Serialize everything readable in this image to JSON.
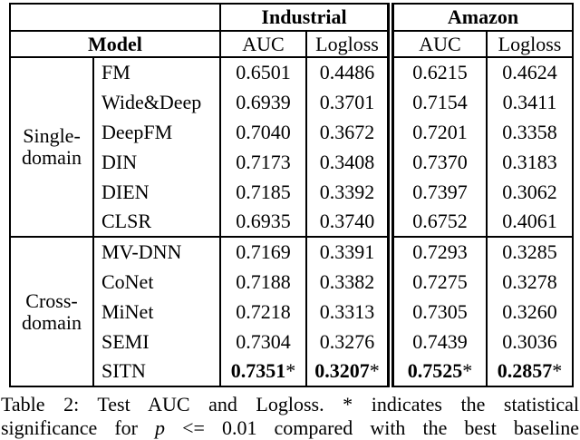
{
  "page": {
    "background": "#ffffff",
    "text_color": "#000000",
    "border_color": "#000000"
  },
  "table": {
    "header": {
      "corner": "",
      "group_industrial": "Industrial",
      "group_amazon": "Amazon",
      "model_col": "Model",
      "metric_cols": [
        "AUC",
        "Logloss",
        "AUC",
        "Logloss"
      ]
    },
    "groups": [
      {
        "label_lines": [
          "Single-",
          "domain"
        ],
        "rows": [
          {
            "model": "FM",
            "values": [
              "0.6501",
              "0.4486",
              "0.6215",
              "0.4624"
            ]
          },
          {
            "model": "Wide&Deep",
            "values": [
              "0.6939",
              "0.3701",
              "0.7154",
              "0.3411"
            ]
          },
          {
            "model": "DeepFM",
            "values": [
              "0.7040",
              "0.3672",
              "0.7201",
              "0.3358"
            ]
          },
          {
            "model": "DIN",
            "values": [
              "0.7173",
              "0.3408",
              "0.7370",
              "0.3183"
            ]
          },
          {
            "model": "DIEN",
            "values": [
              "0.7185",
              "0.3392",
              "0.7397",
              "0.3062"
            ]
          },
          {
            "model": "CLSR",
            "values": [
              "0.6935",
              "0.3740",
              "0.6752",
              "0.4061"
            ]
          }
        ]
      },
      {
        "label_lines": [
          "Cross-",
          "domain"
        ],
        "rows": [
          {
            "model": "MV-DNN",
            "values": [
              "0.7169",
              "0.3391",
              "0.7293",
              "0.3285"
            ]
          },
          {
            "model": "CoNet",
            "values": [
              "0.7188",
              "0.3382",
              "0.7275",
              "0.3278"
            ]
          },
          {
            "model": "MiNet",
            "values": [
              "0.7218",
              "0.3313",
              "0.7305",
              "0.3260"
            ]
          },
          {
            "model": "SEMI",
            "values": [
              "0.7304",
              "0.3276",
              "0.7439",
              "0.3036"
            ]
          },
          {
            "model": "SITN",
            "values": [
              "0.7351",
              "0.3207",
              "0.7525",
              "0.2857"
            ],
            "star": "*",
            "bold": true
          }
        ]
      }
    ]
  },
  "caption": {
    "line1": "Table 2: Test AUC and Logloss. * indicates the statistical",
    "line2_pre": "significance for ",
    "line2_var": "p",
    "line2_post": " <= 0.01 compared with the best baseline"
  }
}
